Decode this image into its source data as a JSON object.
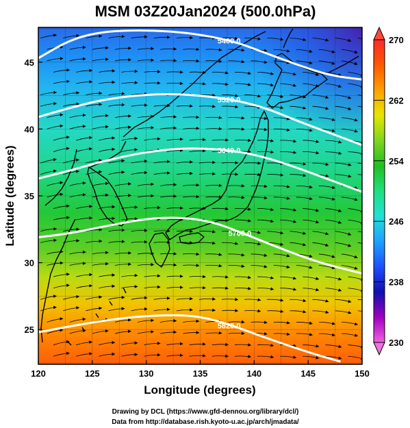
{
  "title": "MSM 03Z20Jan2024 (500.0hPa)",
  "map": {
    "xlabel": "Longitude (degrees)",
    "ylabel": "Latitude  (degrees)",
    "xlim": [
      120,
      150
    ],
    "ylim": [
      22.4,
      47.6
    ],
    "x_ticks": [
      "120",
      "125",
      "130",
      "135",
      "140",
      "145",
      "150"
    ],
    "y_ticks": [
      "25",
      "30",
      "35",
      "40",
      "45"
    ],
    "field": "temperature",
    "vectors": "streamlines of wind (westerly)",
    "contours": [
      {
        "value": 5400,
        "label": "5400.0",
        "points": [
          [
            120,
            45.3
          ],
          [
            123,
            46.7
          ],
          [
            126,
            47.3
          ],
          [
            130,
            47.4
          ],
          [
            134,
            47.2
          ],
          [
            138,
            46.6
          ],
          [
            141,
            45.7
          ],
          [
            144,
            44.8
          ],
          [
            147,
            44.0
          ],
          [
            150,
            43.7
          ]
        ]
      },
      {
        "value": 5520,
        "label": "5520.0",
        "points": [
          [
            120,
            40.9
          ],
          [
            123,
            41.6
          ],
          [
            126,
            42.2
          ],
          [
            130,
            42.6
          ],
          [
            134,
            42.6
          ],
          [
            138,
            42.2
          ],
          [
            141,
            41.6
          ],
          [
            144,
            40.6
          ],
          [
            147,
            39.7
          ],
          [
            150,
            38.8
          ]
        ]
      },
      {
        "value": 5640,
        "label": "5640.0",
        "points": [
          [
            120,
            36.3
          ],
          [
            123,
            36.9
          ],
          [
            126,
            37.6
          ],
          [
            130,
            38.3
          ],
          [
            134,
            38.6
          ],
          [
            138,
            38.4
          ],
          [
            141,
            37.9
          ],
          [
            144,
            37.1
          ],
          [
            147,
            36.2
          ],
          [
            150,
            35.3
          ]
        ]
      },
      {
        "value": 5700,
        "label": "5700.0",
        "points": [
          [
            120,
            31.9
          ],
          [
            123,
            32.2
          ],
          [
            126,
            32.7
          ],
          [
            130,
            33.3
          ],
          [
            133,
            33.4
          ],
          [
            136,
            33.1
          ],
          [
            139,
            32.2
          ],
          [
            142,
            31.2
          ],
          [
            146,
            30.0
          ],
          [
            150,
            29.2
          ]
        ]
      },
      {
        "value": 5820,
        "label": "5820.0",
        "points": [
          [
            120,
            24.8
          ],
          [
            124,
            25.4
          ],
          [
            128,
            25.9
          ],
          [
            132,
            26.1
          ],
          [
            135,
            26.0
          ],
          [
            138,
            25.3
          ],
          [
            141,
            24.4
          ],
          [
            145,
            23.3
          ],
          [
            148,
            22.6
          ]
        ]
      }
    ],
    "colormap": {
      "colors": [
        "#f060e0",
        "#a000c0",
        "#1010b0",
        "#1e50ff",
        "#1fa0ff",
        "#22e0d8",
        "#20e080",
        "#20c020",
        "#7ed520",
        "#e6e600",
        "#ffa000",
        "#ff5a00",
        "#ff2a2a"
      ]
    }
  },
  "colorbar": {
    "ticks": [
      "270",
      "262",
      "254",
      "246",
      "238",
      "230"
    ],
    "min": 230,
    "max": 270
  },
  "credits": {
    "line1": "Drawing by DCL (https://www.gfd-dennou.org/library/dcl/)",
    "line2": "Data from http://database.rish.kyoto-u.ac.jp/arch/jmadata/"
  }
}
